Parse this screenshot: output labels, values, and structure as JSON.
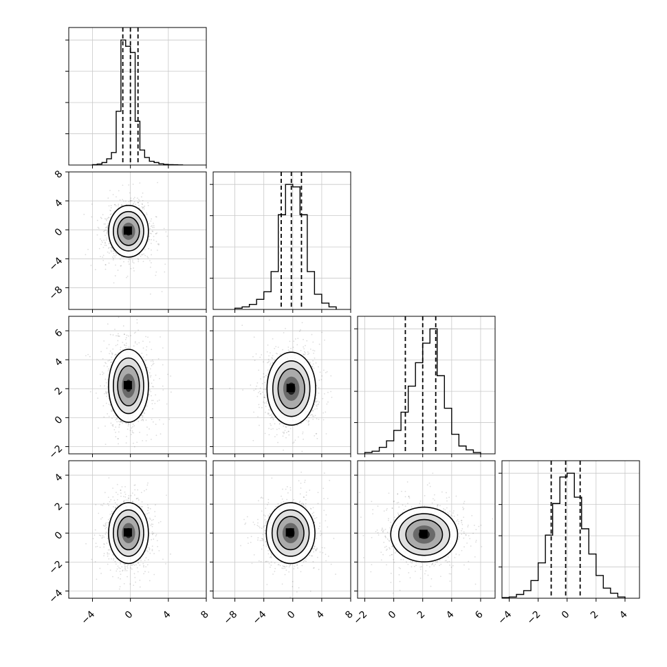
{
  "chart_data": {
    "type": "corner",
    "title": "",
    "grid": true,
    "parameters": [
      {
        "index": 0,
        "axis_range": [
          -6.5,
          8.0
        ],
        "ticks": [
          -4,
          0,
          4,
          8
        ],
        "tick_labels": [
          "−4",
          "0",
          "4",
          "8"
        ]
      },
      {
        "index": 1,
        "axis_range": [
          -11.0,
          8.0
        ],
        "ticks": [
          -8,
          -4,
          0,
          4,
          8
        ],
        "tick_labels": [
          "−8",
          "−4",
          "0",
          "4",
          "8"
        ]
      },
      {
        "index": 2,
        "axis_range": [
          -2.5,
          7.0
        ],
        "ticks": [
          -2,
          0,
          2,
          4,
          6
        ],
        "tick_labels": [
          "−2",
          "0",
          "2",
          "4",
          "6"
        ]
      },
      {
        "index": 3,
        "axis_range": [
          -4.5,
          5.0
        ],
        "ticks": [
          -4,
          -2,
          0,
          2,
          4
        ],
        "tick_labels": [
          "−4",
          "−2",
          "0",
          "2",
          "4"
        ]
      }
    ],
    "marginals": [
      {
        "param": 0,
        "quantiles": [
          -0.8,
          0.0,
          0.8
        ],
        "bin_edges": [
          -4,
          -3.5,
          -3,
          -2.5,
          -2,
          -1.5,
          -1,
          -0.5,
          0,
          0.5,
          1,
          1.5,
          2,
          2.5,
          3,
          3.5,
          4,
          4.5,
          5,
          5.5
        ],
        "counts": [
          0.3,
          0.8,
          2,
          5,
          10,
          43,
          100,
          95,
          90,
          35,
          12,
          6,
          3,
          2,
          1,
          0.5,
          0.3,
          0.2,
          0.1
        ]
      },
      {
        "param": 1,
        "quantiles": [
          -1.6,
          -0.2,
          1.2
        ],
        "bin_edges": [
          -8,
          -7,
          -6,
          -5,
          -4,
          -3,
          -2,
          -1,
          0,
          1,
          2,
          3,
          4,
          5,
          6
        ],
        "counts": [
          1,
          2,
          4,
          8,
          14,
          30,
          75,
          99,
          97,
          75,
          30,
          12,
          5,
          2
        ]
      },
      {
        "param": 2,
        "quantiles": [
          0.8,
          2.0,
          2.9
        ],
        "bin_edges": [
          -2,
          -1.5,
          -1,
          -0.5,
          0,
          0.5,
          1,
          1.5,
          2,
          2.5,
          3,
          3.5,
          4,
          4.5,
          5,
          5.5,
          6
        ],
        "counts": [
          1,
          2,
          5,
          10,
          18,
          32,
          52,
          70,
          85,
          96,
          60,
          35,
          15,
          6,
          3,
          1
        ]
      },
      {
        "param": 3,
        "quantiles": [
          -1.1,
          -0.1,
          0.9
        ],
        "bin_edges": [
          -4.5,
          -4,
          -3.5,
          -3,
          -2.5,
          -2,
          -1.5,
          -1,
          -0.5,
          0,
          0.5,
          1,
          1.5,
          2,
          2.5,
          3,
          3.5,
          4
        ],
        "counts": [
          0.5,
          1,
          3,
          6,
          14,
          28,
          50,
          75,
          96,
          99,
          80,
          55,
          35,
          18,
          8,
          4,
          1
        ]
      }
    ],
    "joint": [
      {
        "x": 0,
        "y": 1,
        "center": [
          -0.2,
          -0.2
        ],
        "sigma": [
          1.0,
          1.7
        ]
      },
      {
        "x": 0,
        "y": 2,
        "center": [
          -0.2,
          2.2
        ],
        "sigma": [
          1.0,
          1.2
        ]
      },
      {
        "x": 1,
        "y": 2,
        "center": [
          -0.2,
          2.0
        ],
        "sigma": [
          1.6,
          1.2
        ]
      },
      {
        "x": 0,
        "y": 3,
        "center": [
          -0.2,
          0.0
        ],
        "sigma": [
          1.0,
          1.0
        ]
      },
      {
        "x": 1,
        "y": 3,
        "center": [
          -0.3,
          0.0
        ],
        "sigma": [
          1.6,
          1.0
        ]
      },
      {
        "x": 2,
        "y": 3,
        "center": [
          2.1,
          -0.1
        ],
        "sigma": [
          1.1,
          0.9
        ]
      }
    ]
  }
}
